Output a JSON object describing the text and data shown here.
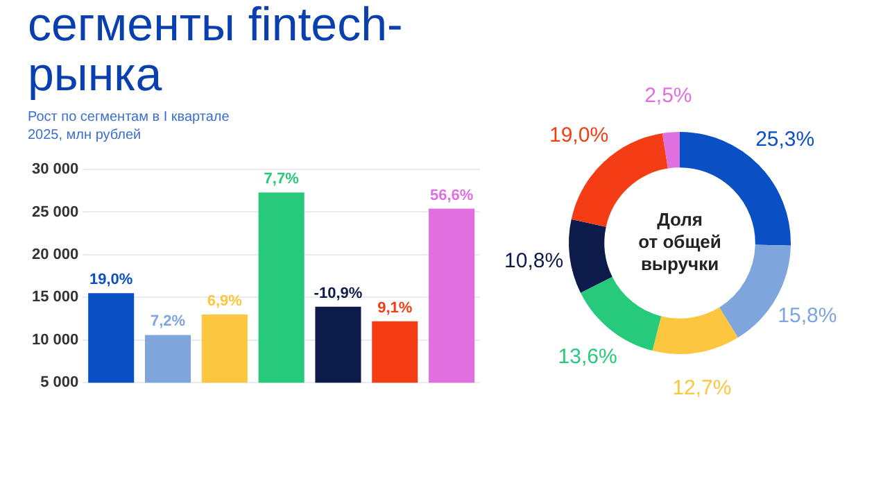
{
  "chart_data": [
    {
      "type": "bar",
      "title": "сегменты fintech-рынка",
      "subtitle": "Рост по сегментам в I квартале 2025, млн рублей",
      "categories": [
        null,
        null,
        null,
        null,
        null,
        null,
        null
      ],
      "values": [
        15500,
        10600,
        13000,
        27300,
        13900,
        12200,
        25400
      ],
      "colors": [
        "#0a4fc4",
        "#7fa6dc",
        "#fcc63e",
        "#27c97a",
        "#0c1b4a",
        "#f43d14",
        "#e070e0"
      ],
      "annotations": [
        "19,0%",
        "7,2%",
        "6,9%",
        "7,7%",
        "-10,9%",
        "9,1%",
        "56,6%"
      ],
      "ylim": [
        5000,
        30000
      ],
      "yticks": [
        {
          "value": 5000,
          "label": "5 000"
        },
        {
          "value": 10000,
          "label": "10 000"
        },
        {
          "value": 15000,
          "label": "15 000"
        },
        {
          "value": 20000,
          "label": "20 000"
        },
        {
          "value": 25000,
          "label": "25 000"
        },
        {
          "value": 30000,
          "label": "30 000"
        }
      ],
      "grid": "y",
      "legend": false
    },
    {
      "type": "donut",
      "title": "Доля от общей выручки",
      "categories": [
        null,
        null,
        null,
        null,
        null,
        null,
        null
      ],
      "values": [
        25.3,
        15.8,
        12.7,
        13.6,
        10.8,
        19.0,
        2.5
      ],
      "colors": [
        "#0a4fc4",
        "#7fa6dc",
        "#fcc63e",
        "#27c97a",
        "#0c1b4a",
        "#f43d14",
        "#e070e0"
      ],
      "value_labels": [
        "25,3%",
        "15,8%",
        "12,7%",
        "13,6%",
        "10,8%",
        "19,0%",
        "2,5%"
      ],
      "legend": false
    }
  ]
}
